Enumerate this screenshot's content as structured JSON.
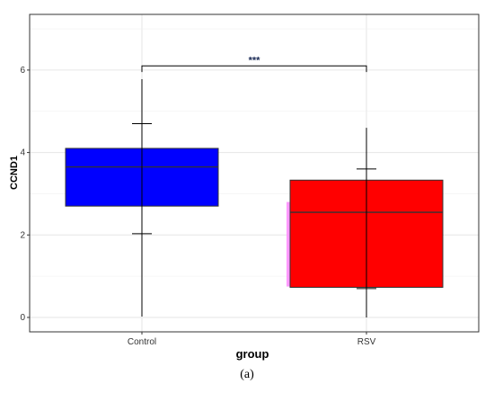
{
  "chart_data": {
    "type": "box",
    "xlabel": "group",
    "ylabel": "CCND1",
    "ylim": [
      -0.35,
      7.35
    ],
    "yticks": [
      0,
      2,
      4,
      6
    ],
    "grid": true,
    "categories": [
      "Control",
      "RSV"
    ],
    "boxes": [
      {
        "name": "Control",
        "color": "#0000ff",
        "whisker_low": 0.02,
        "q1": 2.7,
        "median": 3.65,
        "q3": 4.1,
        "whisker_high": 5.78,
        "errorbar": [
          2.03,
          4.7
        ]
      },
      {
        "name": "RSV",
        "color": "#ff0000",
        "shadow_color": "#ff99ff",
        "whisker_low": 0.0,
        "q1": 0.73,
        "median": 2.55,
        "q3": 3.33,
        "whisker_high": 4.6,
        "errorbar": [
          0.7,
          3.6
        ],
        "shadow_range": [
          0.75,
          2.8
        ]
      }
    ],
    "significance": {
      "label": "***",
      "between": [
        "Control",
        "RSV"
      ],
      "y": 6.1,
      "tip": 0.15
    }
  },
  "caption": "(a)"
}
